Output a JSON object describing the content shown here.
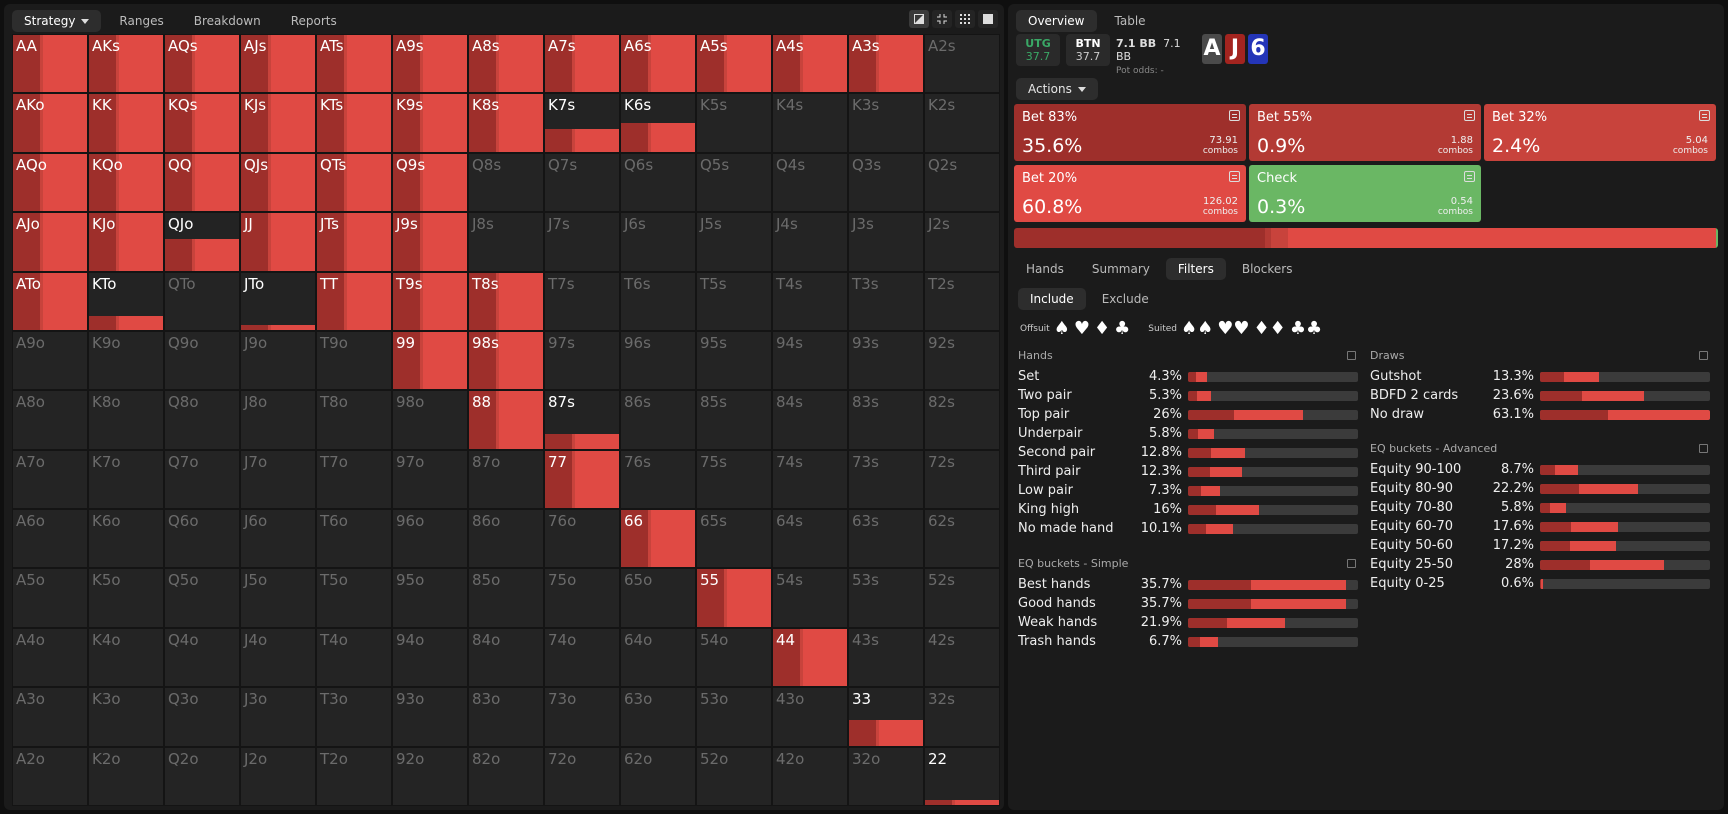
{
  "left_tabs": [
    {
      "label": "Strategy",
      "active": true,
      "dropdown": true
    },
    {
      "label": "Ranges"
    },
    {
      "label": "Breakdown"
    },
    {
      "label": "Reports"
    }
  ],
  "view_icons": [
    "contrast-icon",
    "compress-icon",
    "grid-icon",
    "square-icon"
  ],
  "right_tabs": [
    {
      "label": "Overview",
      "active": true
    },
    {
      "label": "Table"
    }
  ],
  "context": {
    "p1": {
      "name": "UTG",
      "stack": "37.7"
    },
    "p2": {
      "name": "BTN",
      "stack": "37.7"
    },
    "pot_left": "7.1 BB",
    "pot_right": "7.1 BB",
    "pot_odds_label": "Pot odds:",
    "pot_odds": "-"
  },
  "board": [
    {
      "rank": "A",
      "color": "#4a4a4a"
    },
    {
      "rank": "J",
      "color": "#a3241f"
    },
    {
      "rank": "6",
      "color": "#2435b8"
    }
  ],
  "actions_label": "Actions",
  "actions": [
    {
      "name": "Bet 83%",
      "pct": "35.6%",
      "combos": "73.91",
      "color": "#9e2f2b"
    },
    {
      "name": "Bet 55%",
      "pct": "0.9%",
      "combos": "1.88",
      "color": "#b33a34"
    },
    {
      "name": "Bet 32%",
      "pct": "2.4%",
      "combos": "5.04",
      "color": "#c8433c"
    },
    {
      "name": "Bet 20%",
      "pct": "60.8%",
      "combos": "126.02",
      "color": "#e04a44"
    },
    {
      "name": "Check",
      "pct": "0.3%",
      "combos": "0.54",
      "color": "#6ab764"
    }
  ],
  "combos_word": "combos",
  "strategy_mix": [
    35.6,
    0.9,
    2.4,
    60.8,
    0.3
  ],
  "lower_tabs": [
    {
      "label": "Hands"
    },
    {
      "label": "Summary"
    },
    {
      "label": "Filters",
      "active": true
    },
    {
      "label": "Blockers"
    }
  ],
  "include_tabs": [
    {
      "label": "Include",
      "active": true
    },
    {
      "label": "Exclude"
    }
  ],
  "suit_filter": {
    "offsuit_label": "Offsuit",
    "suited_label": "Suited"
  },
  "hands_section": {
    "title": "Hands",
    "rows": [
      {
        "name": "Set",
        "value": "4.3%",
        "frac": 0.043
      },
      {
        "name": "Two pair",
        "value": "5.3%",
        "frac": 0.053
      },
      {
        "name": "Top pair",
        "value": "26%",
        "frac": 0.26
      },
      {
        "name": "Underpair",
        "value": "5.8%",
        "frac": 0.058
      },
      {
        "name": "Second pair",
        "value": "12.8%",
        "frac": 0.128
      },
      {
        "name": "Third pair",
        "value": "12.3%",
        "frac": 0.123
      },
      {
        "name": "Low pair",
        "value": "7.3%",
        "frac": 0.073
      },
      {
        "name": "King high",
        "value": "16%",
        "frac": 0.16
      },
      {
        "name": "No made hand",
        "value": "10.1%",
        "frac": 0.101
      }
    ]
  },
  "eq_simple": {
    "title": "EQ buckets - Simple",
    "rows": [
      {
        "name": "Best hands",
        "value": "35.7%",
        "frac": 0.357
      },
      {
        "name": "Good hands",
        "value": "35.7%",
        "frac": 0.357
      },
      {
        "name": "Weak hands",
        "value": "21.9%",
        "frac": 0.219
      },
      {
        "name": "Trash hands",
        "value": "6.7%",
        "frac": 0.067
      }
    ]
  },
  "draws": {
    "title": "Draws",
    "rows": [
      {
        "name": "Gutshot",
        "value": "13.3%",
        "frac": 0.133
      },
      {
        "name": "BDFD 2 cards",
        "value": "23.6%",
        "frac": 0.236
      },
      {
        "name": "No draw",
        "value": "63.1%",
        "frac": 0.631
      }
    ]
  },
  "eq_advanced": {
    "title": "EQ buckets - Advanced",
    "rows": [
      {
        "name": "Equity 90-100",
        "value": "8.7%",
        "frac": 0.087
      },
      {
        "name": "Equity 80-90",
        "value": "22.2%",
        "frac": 0.222
      },
      {
        "name": "Equity 70-80",
        "value": "5.8%",
        "frac": 0.058
      },
      {
        "name": "Equity 60-70",
        "value": "17.6%",
        "frac": 0.176
      },
      {
        "name": "Equity 50-60",
        "value": "17.2%",
        "frac": 0.172
      },
      {
        "name": "Equity 25-50",
        "value": "28%",
        "frac": 0.28
      },
      {
        "name": "Equity 0-25",
        "value": "0.6%",
        "frac": 0.006
      }
    ]
  },
  "range_frequency": {
    "AA": 1,
    "AKs": 1,
    "AQs": 1,
    "AJs": 1,
    "ATs": 1,
    "A9s": 1,
    "A8s": 1,
    "A7s": 1,
    "A6s": 1,
    "A5s": 1,
    "A4s": 1,
    "A3s": 1,
    "AKo": 1,
    "KK": 1,
    "KQs": 1,
    "KJs": 1,
    "KTs": 1,
    "K9s": 1,
    "K8s": 1,
    "K7s": 0.4,
    "K6s": 0.5,
    "AQo": 1,
    "KQo": 1,
    "QQ": 1,
    "QJs": 1,
    "QTs": 1,
    "Q9s": 1,
    "AJo": 1,
    "KJo": 1,
    "QJo": 0.55,
    "JJ": 1,
    "JTs": 1,
    "J9s": 1,
    "ATo": 1,
    "KTo": 0.25,
    "JTo": 0.08,
    "TT": 1,
    "T9s": 1,
    "T8s": 1,
    "99": 1,
    "98s": 1,
    "88": 1,
    "87s": 0.25,
    "77": 1,
    "66": 1,
    "55": 1,
    "44": 1,
    "33": 0.45,
    "22": 0.08
  }
}
